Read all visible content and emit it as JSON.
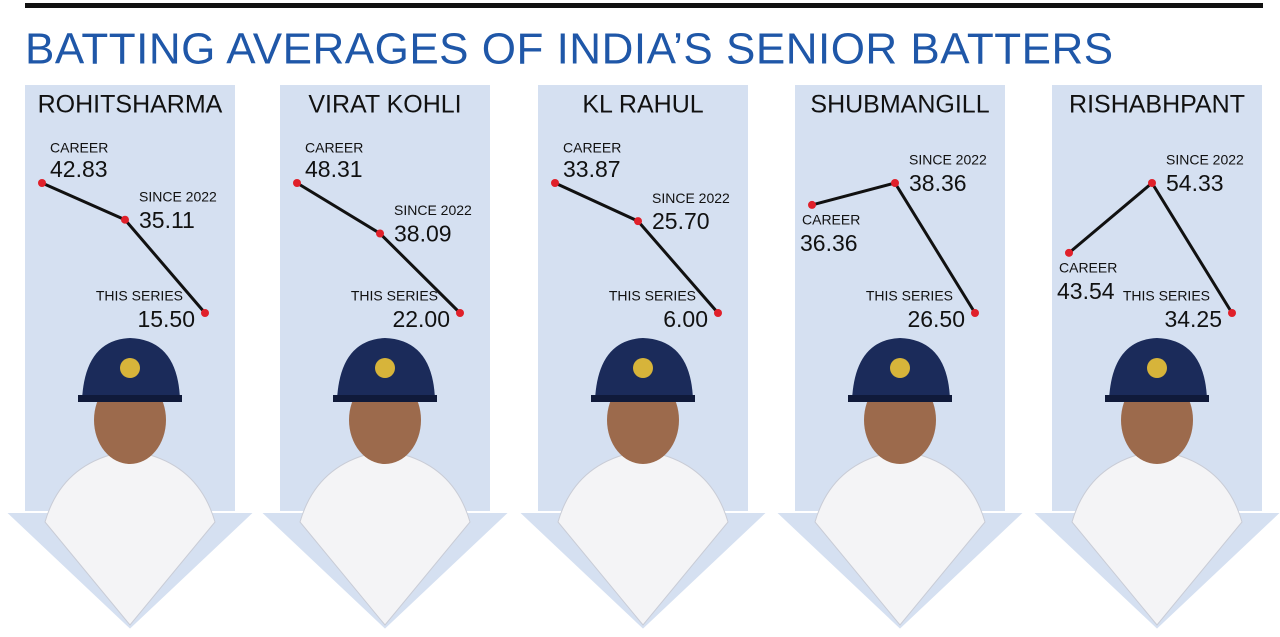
{
  "title": "BATTING AVERAGES OF INDIA’S SENIOR BATTERS",
  "chart_data": [
    {
      "type": "line",
      "title": "ROHITSHARMA",
      "categories": [
        "CAREER",
        "SINCE 2022",
        "THIS SERIES"
      ],
      "values": [
        42.83,
        35.11,
        15.5
      ],
      "value_labels": [
        "42.83",
        "35.11",
        "15.50"
      ],
      "color": "#111111",
      "marker_color": "#e0202a"
    },
    {
      "type": "line",
      "title": "VIRAT KOHLI",
      "categories": [
        "CAREER",
        "SINCE 2022",
        "THIS SERIES"
      ],
      "values": [
        48.31,
        38.09,
        22
      ],
      "value_labels": [
        "48.31",
        "38.09",
        "22.00"
      ],
      "color": "#111111",
      "marker_color": "#e0202a"
    },
    {
      "type": "line",
      "title": "KL RAHUL",
      "categories": [
        "CAREER",
        "SINCE 2022",
        "THIS SERIES"
      ],
      "values": [
        33.87,
        25.7,
        6
      ],
      "value_labels": [
        "33.87",
        "25.70",
        "6.00"
      ],
      "color": "#111111",
      "marker_color": "#e0202a"
    },
    {
      "type": "line",
      "title": "SHUBMANGILL",
      "categories": [
        "CAREER",
        "SINCE 2022",
        "THIS SERIES"
      ],
      "values": [
        36.36,
        38.36,
        26.5
      ],
      "value_labels": [
        "36.36",
        "38.36",
        "26.50"
      ],
      "color": "#111111",
      "marker_color": "#e0202a"
    },
    {
      "type": "line",
      "title": "RISHABHPANT",
      "categories": [
        "CAREER",
        "SINCE 2022",
        "THIS SERIES"
      ],
      "values": [
        43.54,
        54.33,
        34.25
      ],
      "color": "#111111",
      "marker_color": "#e0202a"
    }
  ]
}
